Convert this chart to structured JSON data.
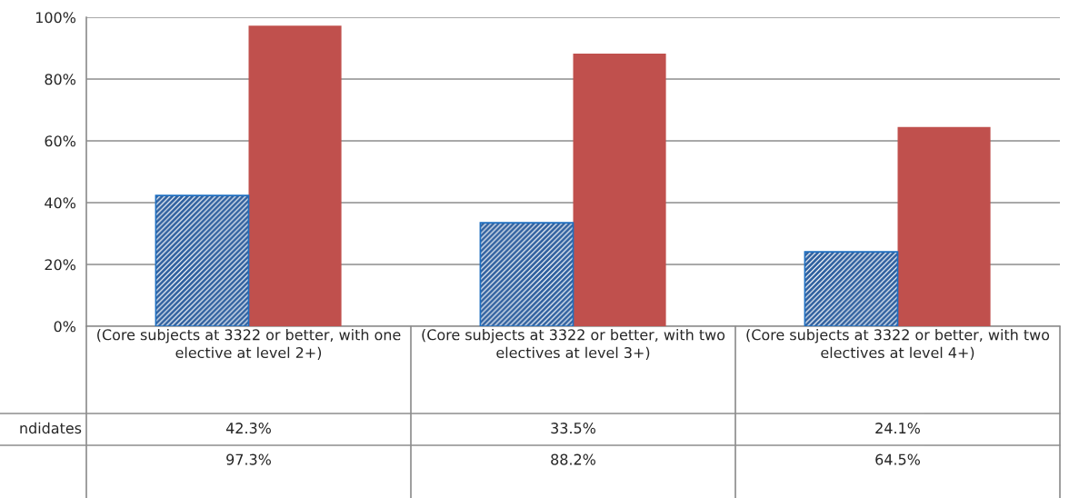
{
  "chart_data": {
    "type": "bar",
    "categories": [
      "(Core subjects at 3322 or better, with one elective at level 2+)",
      "(Core subjects at 3322 or better, with two electives at level 3+)",
      "(Core subjects at 3322 or better, with two electives at level 4+)"
    ],
    "series": [
      {
        "name": "ndidates",
        "color": "#2e5f9e",
        "values": [
          42.3,
          33.5,
          24.1
        ],
        "value_labels": [
          "42.3%",
          "33.5%",
          "24.1%"
        ]
      },
      {
        "color": "#c0504d",
        "values": [
          97.3,
          88.2,
          64.5
        ],
        "value_labels": [
          "97.3%",
          "88.2%",
          "64.5%"
        ]
      }
    ],
    "ylim": [
      0,
      100
    ],
    "yticks": [
      {
        "value": 0,
        "label": "0%"
      },
      {
        "value": 20,
        "label": "20%"
      },
      {
        "value": 40,
        "label": "40%"
      },
      {
        "value": 60,
        "label": "60%"
      },
      {
        "value": 80,
        "label": "80%"
      },
      {
        "value": 100,
        "label": "100%"
      }
    ],
    "grid": "y",
    "legend": false
  }
}
